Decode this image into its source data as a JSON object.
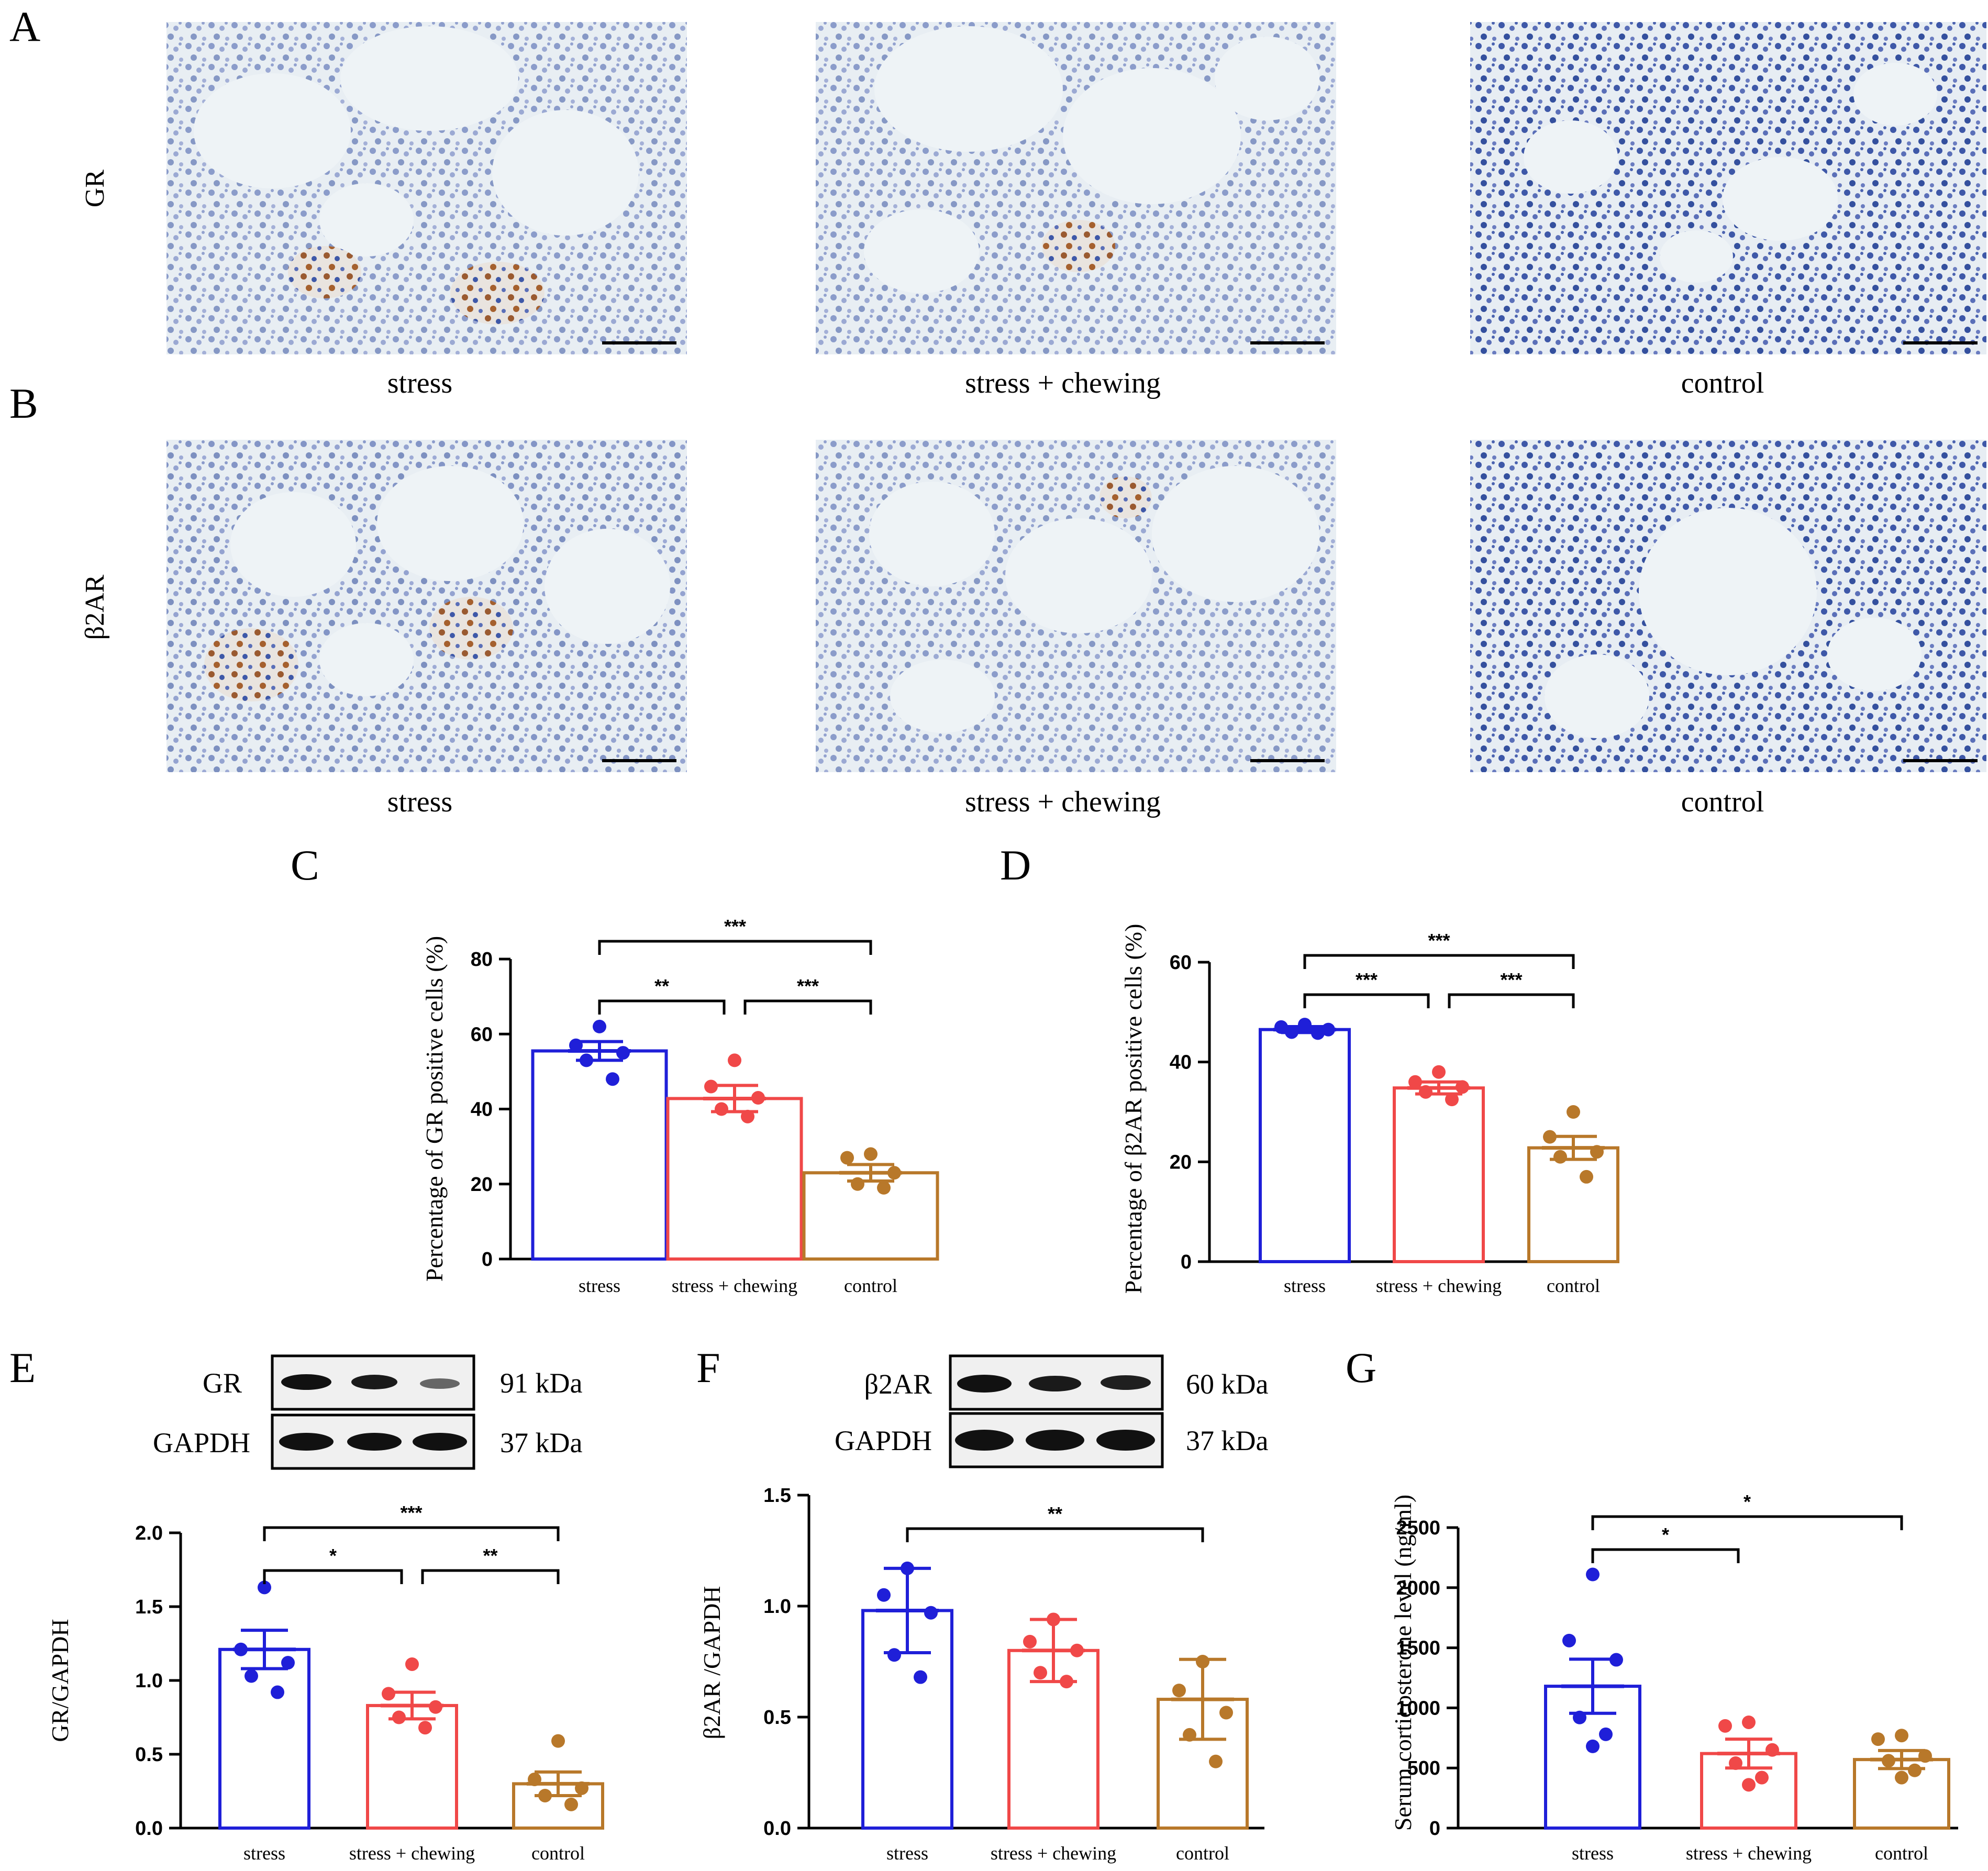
{
  "panel_letters": {
    "A": "A",
    "B": "B",
    "C": "C",
    "D": "D",
    "E": "E",
    "F": "F",
    "G": "G"
  },
  "micrographs": {
    "row_A_label": "GR",
    "row_B_label": "β2AR",
    "captions_A": [
      "stress",
      "stress + chewing",
      "control"
    ],
    "captions_B": [
      "stress",
      "stress + chewing",
      "control"
    ]
  },
  "blots": {
    "E": {
      "top_label": "GR",
      "top_kda": "91 kDa",
      "bottom_label": "GAPDH",
      "bottom_kda": "37 kDa"
    },
    "F": {
      "top_label": "β2AR",
      "top_kda": "60 kDa",
      "bottom_label": "GAPDH",
      "bottom_kda": "37 kDa"
    }
  },
  "colors": {
    "stress": "#1f1fd8",
    "chewing": "#f04848",
    "control": "#b8782a"
  },
  "chart_data": [
    {
      "id": "C",
      "type": "bar",
      "categories": [
        "stress",
        "stress + chewing",
        "control"
      ],
      "values": [
        55.5,
        42.8,
        23.0
      ],
      "errors": [
        2.5,
        3.5,
        2.2
      ],
      "points": [
        [
          62,
          57,
          55,
          53,
          48
        ],
        [
          53,
          46,
          43,
          40,
          38
        ],
        [
          28,
          27,
          23,
          20,
          19
        ]
      ],
      "ylabel": "Percentage of GR positive cells (%)",
      "ylim": [
        0,
        80
      ],
      "yticks": [
        0,
        20,
        40,
        60,
        80
      ],
      "tick_labels": [
        "0",
        "20",
        "40",
        "60",
        "80"
      ],
      "significance": [
        {
          "from": 0,
          "to": 2,
          "label": "***"
        },
        {
          "from": 0,
          "to": 1,
          "label": "**"
        },
        {
          "from": 1,
          "to": 2,
          "label": "***"
        }
      ]
    },
    {
      "id": "D",
      "type": "bar",
      "categories": [
        "stress",
        "stress + chewing",
        "control"
      ],
      "values": [
        46.5,
        34.8,
        22.8
      ],
      "errors": [
        0.6,
        1.2,
        2.3
      ],
      "points": [
        [
          47.5,
          47,
          46.5,
          46,
          45.8
        ],
        [
          38,
          36,
          35,
          34,
          32.5
        ],
        [
          30,
          25,
          22,
          21,
          17
        ]
      ],
      "ylabel": "Percentage of β2AR positive cells (%)",
      "ylim": [
        0,
        60
      ],
      "yticks": [
        0,
        20,
        40,
        60
      ],
      "tick_labels": [
        "0",
        "20",
        "40",
        "60"
      ],
      "significance": [
        {
          "from": 0,
          "to": 2,
          "label": "***"
        },
        {
          "from": 0,
          "to": 1,
          "label": "***"
        },
        {
          "from": 1,
          "to": 2,
          "label": "***"
        }
      ]
    },
    {
      "id": "E",
      "type": "bar",
      "categories": [
        "stress",
        "stress + chewing",
        "control"
      ],
      "values": [
        1.21,
        0.83,
        0.3
      ],
      "errors": [
        0.13,
        0.09,
        0.08
      ],
      "points": [
        [
          1.63,
          1.21,
          1.12,
          1.03,
          0.92
        ],
        [
          1.11,
          0.91,
          0.82,
          0.75,
          0.68
        ],
        [
          0.59,
          0.33,
          0.27,
          0.22,
          0.16
        ]
      ],
      "ylabel": "GR/GAPDH",
      "ylim": [
        0,
        2.0
      ],
      "yticks": [
        0,
        0.5,
        1.0,
        1.5,
        2.0
      ],
      "tick_labels": [
        "0.0",
        "0.5",
        "1.0",
        "1.5",
        "2.0"
      ],
      "significance": [
        {
          "from": 0,
          "to": 2,
          "label": "***"
        },
        {
          "from": 0,
          "to": 1,
          "label": "*"
        },
        {
          "from": 1,
          "to": 2,
          "label": "**"
        }
      ]
    },
    {
      "id": "F",
      "type": "bar",
      "categories": [
        "stress",
        "stress + chewing",
        "control"
      ],
      "values": [
        0.98,
        0.8,
        0.58
      ],
      "errors": [
        0.19,
        0.14,
        0.18
      ],
      "points": [
        [
          1.17,
          1.05,
          0.97,
          0.78,
          0.68
        ],
        [
          0.94,
          0.84,
          0.8,
          0.7,
          0.66
        ],
        [
          0.75,
          0.62,
          0.52,
          0.42,
          0.3
        ]
      ],
      "ylabel": "β2AR /GAPDH",
      "ylim": [
        0,
        1.5
      ],
      "yticks": [
        0,
        0.5,
        1.0,
        1.5
      ],
      "tick_labels": [
        "0.0",
        "0.5",
        "1.0",
        "1.5"
      ],
      "significance": [
        {
          "from": 0,
          "to": 2,
          "label": "**"
        }
      ]
    },
    {
      "id": "G",
      "type": "bar",
      "categories": [
        "stress",
        "stress + chewing",
        "control"
      ],
      "values": [
        1180,
        620,
        570
      ],
      "errors": [
        225,
        120,
        75
      ],
      "points": [
        [
          2110,
          1560,
          1400,
          920,
          780,
          680
        ],
        [
          880,
          850,
          650,
          540,
          420,
          360
        ],
        [
          770,
          740,
          600,
          560,
          480,
          420
        ]
      ],
      "ylabel": "Serum corticosterone level (ng/ml)",
      "ylim": [
        0,
        2500
      ],
      "yticks": [
        0,
        500,
        1000,
        1500,
        2000,
        2500
      ],
      "tick_labels": [
        "0",
        "500",
        "1000",
        "1500",
        "2000",
        "2500"
      ],
      "significance": [
        {
          "from": 0,
          "to": 2,
          "label": "*"
        },
        {
          "from": 0,
          "to": 1,
          "label": "*"
        }
      ]
    }
  ]
}
